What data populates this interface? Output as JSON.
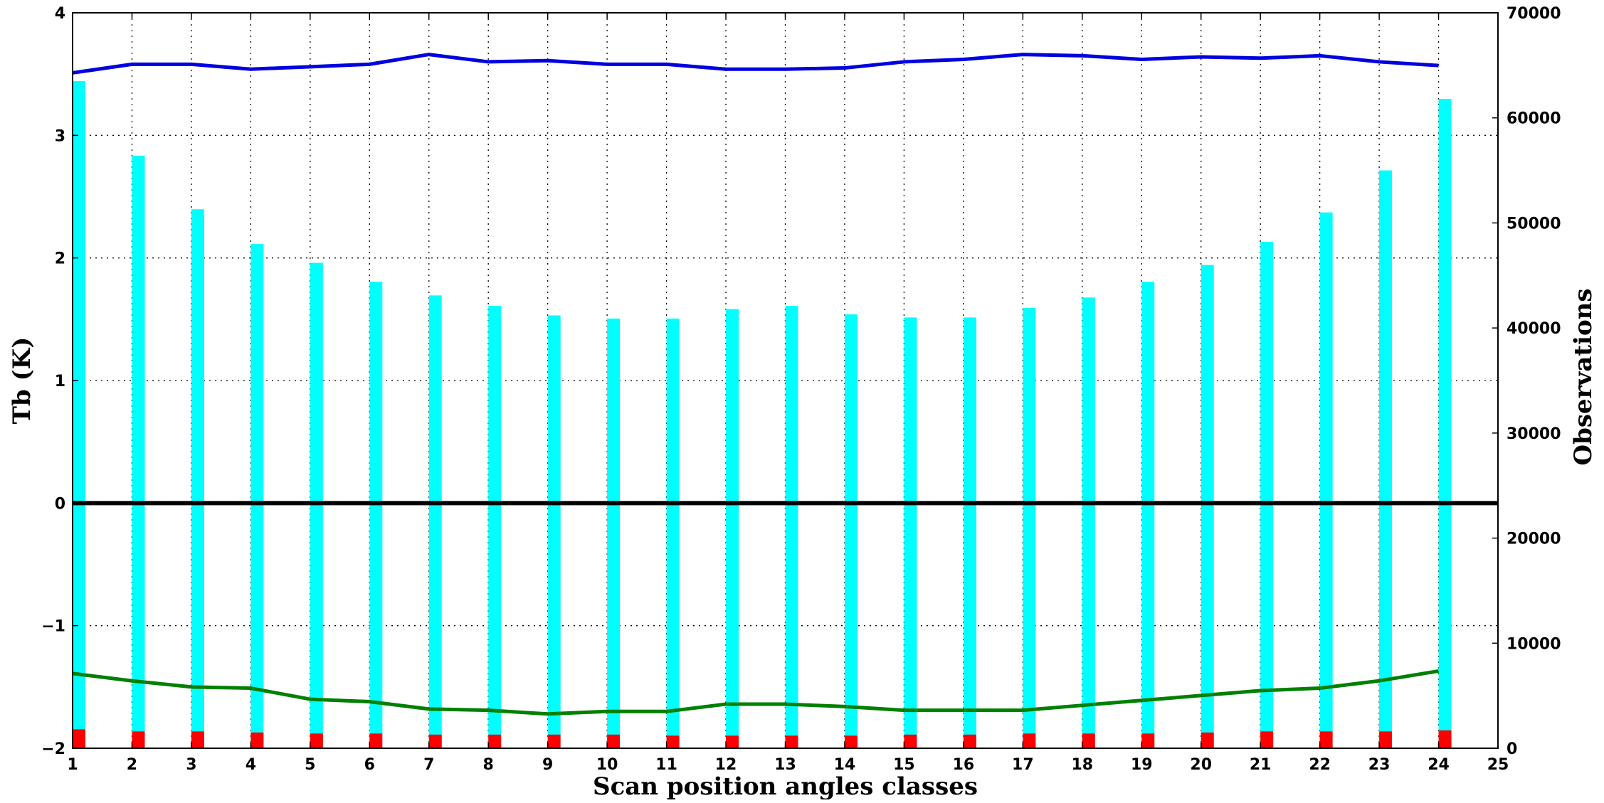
{
  "chart_data": {
    "type": "bar",
    "x_categories": [
      "1",
      "2",
      "3",
      "4",
      "5",
      "6",
      "7",
      "8",
      "9",
      "10",
      "11",
      "12",
      "13",
      "14",
      "15",
      "16",
      "17",
      "18",
      "19",
      "20",
      "21",
      "22",
      "23",
      "24"
    ],
    "xlim": [
      1,
      25
    ],
    "x_ticks": [
      "1",
      "2",
      "3",
      "4",
      "5",
      "6",
      "7",
      "8",
      "9",
      "10",
      "11",
      "12",
      "13",
      "14",
      "15",
      "16",
      "17",
      "18",
      "19",
      "20",
      "21",
      "22",
      "23",
      "24",
      "25"
    ],
    "xlabel": "Scan position angles classes",
    "ylabel_left": "Tb (K)",
    "ylabel_right": "Observations",
    "ylim_left": [
      -2,
      4
    ],
    "ylim_right": [
      0,
      70000
    ],
    "left_ticks": [
      "−2",
      "−1",
      "0",
      "1",
      "2",
      "3",
      "4"
    ],
    "left_tick_values": [
      -2,
      -1,
      0,
      1,
      2,
      3,
      4
    ],
    "right_ticks": [
      "0",
      "10000",
      "20000",
      "30000",
      "40000",
      "50000",
      "60000",
      "70000"
    ],
    "right_tick_values": [
      0,
      10000,
      20000,
      30000,
      40000,
      50000,
      60000,
      70000
    ],
    "grid": true,
    "zero_line": 0,
    "series": [
      {
        "axis": "right",
        "kind": "bar",
        "color": "#00ffff",
        "values": [
          63500,
          56400,
          51300,
          48000,
          46200,
          44400,
          43100,
          42100,
          41200,
          40900,
          40900,
          41800,
          42100,
          41300,
          41000,
          41000,
          41900,
          42900,
          44400,
          46000,
          48200,
          51000,
          55000,
          61800
        ]
      },
      {
        "axis": "right",
        "kind": "bar",
        "color": "#ff0000",
        "values": [
          1800,
          1600,
          1600,
          1500,
          1400,
          1400,
          1300,
          1300,
          1300,
          1300,
          1200,
          1200,
          1200,
          1200,
          1300,
          1300,
          1400,
          1400,
          1400,
          1500,
          1600,
          1600,
          1600,
          1700
        ]
      },
      {
        "axis": "left",
        "kind": "line",
        "color": "#0000e0",
        "values": [
          3.51,
          3.58,
          3.58,
          3.54,
          3.56,
          3.58,
          3.66,
          3.6,
          3.61,
          3.58,
          3.58,
          3.54,
          3.54,
          3.55,
          3.6,
          3.62,
          3.66,
          3.65,
          3.62,
          3.64,
          3.63,
          3.65,
          3.6,
          3.57
        ]
      },
      {
        "axis": "left",
        "kind": "line",
        "color": "#008000",
        "values": [
          -1.39,
          -1.45,
          -1.5,
          -1.51,
          -1.6,
          -1.62,
          -1.68,
          -1.69,
          -1.72,
          -1.7,
          -1.7,
          -1.64,
          -1.64,
          -1.66,
          -1.69,
          -1.69,
          -1.69,
          -1.65,
          -1.61,
          -1.57,
          -1.53,
          -1.51,
          -1.45,
          -1.37
        ]
      }
    ]
  }
}
